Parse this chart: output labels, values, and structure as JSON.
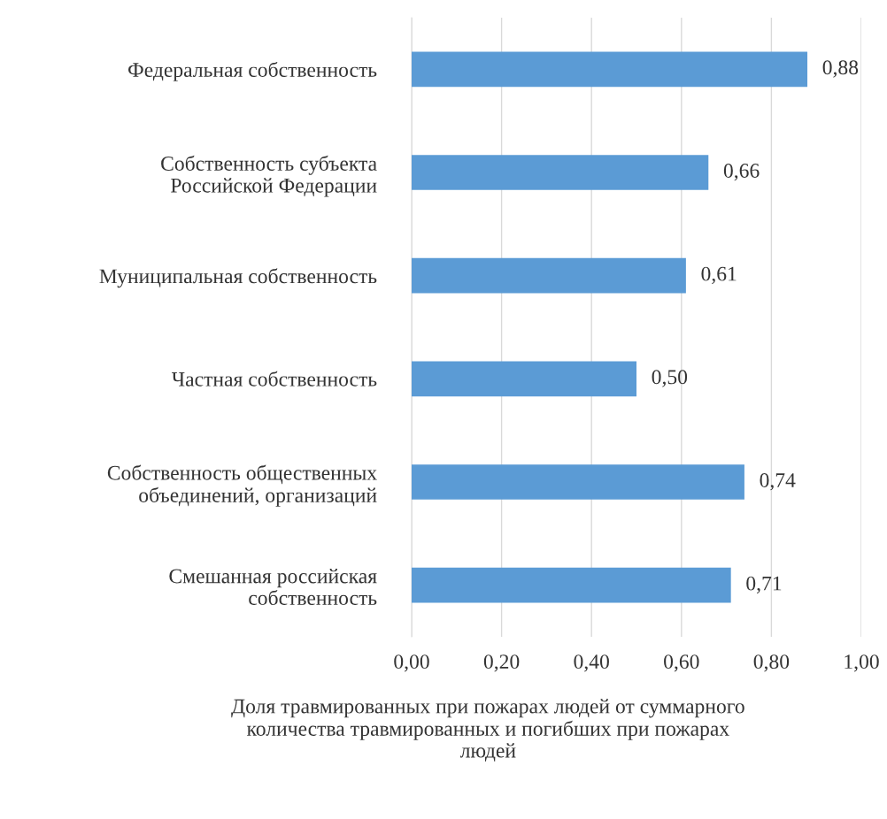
{
  "chart_data": {
    "type": "bar",
    "orientation": "horizontal",
    "xlabel": "Доля травмированных при пожарах людей от суммарного\nколичества травмированных и погибших при пожарах\nлюдей",
    "categories": [
      "Федеральная собственность",
      "Собственность субъекта\nРоссийской Федерации",
      "Муниципальная собственность",
      "Частная собственность",
      "Собственность общественных\nобъединений, организаций",
      "Смешанная российская\nсобственность"
    ],
    "values": [
      0.88,
      0.66,
      0.61,
      0.5,
      0.74,
      0.71
    ],
    "value_labels": [
      "0,88",
      "0,66",
      "0,61",
      "0,50",
      "0,74",
      "0,71"
    ],
    "color": "#5b9bd5",
    "xlim": [
      0,
      1
    ],
    "xticks": [
      {
        "value": 0,
        "label": "0,00"
      },
      {
        "value": 0.2,
        "label": "0,20"
      },
      {
        "value": 0.4,
        "label": "0,40"
      },
      {
        "value": 0.6,
        "label": "0,60"
      },
      {
        "value": 0.8,
        "label": "0,80"
      },
      {
        "value": 1,
        "label": "1,00"
      }
    ],
    "grid": "x"
  }
}
